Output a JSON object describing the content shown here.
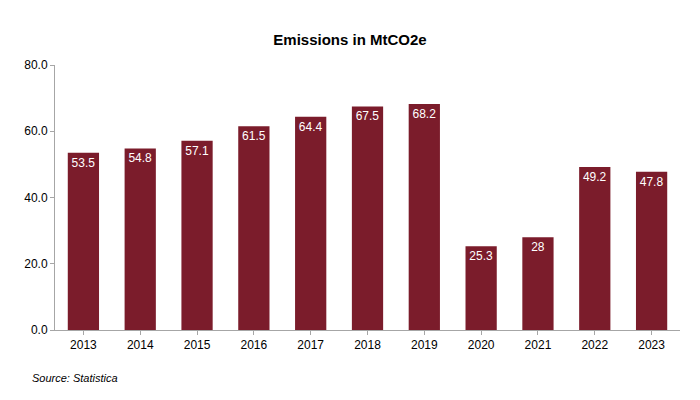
{
  "chart_data": {
    "type": "bar",
    "title": "Emissions in MtCO2e",
    "categories": [
      "2013",
      "2014",
      "2015",
      "2016",
      "2017",
      "2018",
      "2019",
      "2020",
      "2021",
      "2022",
      "2023"
    ],
    "values": [
      53.5,
      54.8,
      57.1,
      61.5,
      64.4,
      67.5,
      68.2,
      25.3,
      28,
      49.2,
      47.8
    ],
    "color": "#7b1c2b",
    "ylim": [
      0,
      80
    ],
    "yticks": [
      {
        "value": 0,
        "label": "0.0"
      },
      {
        "value": 20,
        "label": "20.0"
      },
      {
        "value": 40,
        "label": "40.0"
      },
      {
        "value": 60,
        "label": "60.0"
      },
      {
        "value": 80,
        "label": "80.0"
      }
    ],
    "grid": false,
    "data_labels": true,
    "annotations": [
      "Source: Statistica"
    ]
  }
}
